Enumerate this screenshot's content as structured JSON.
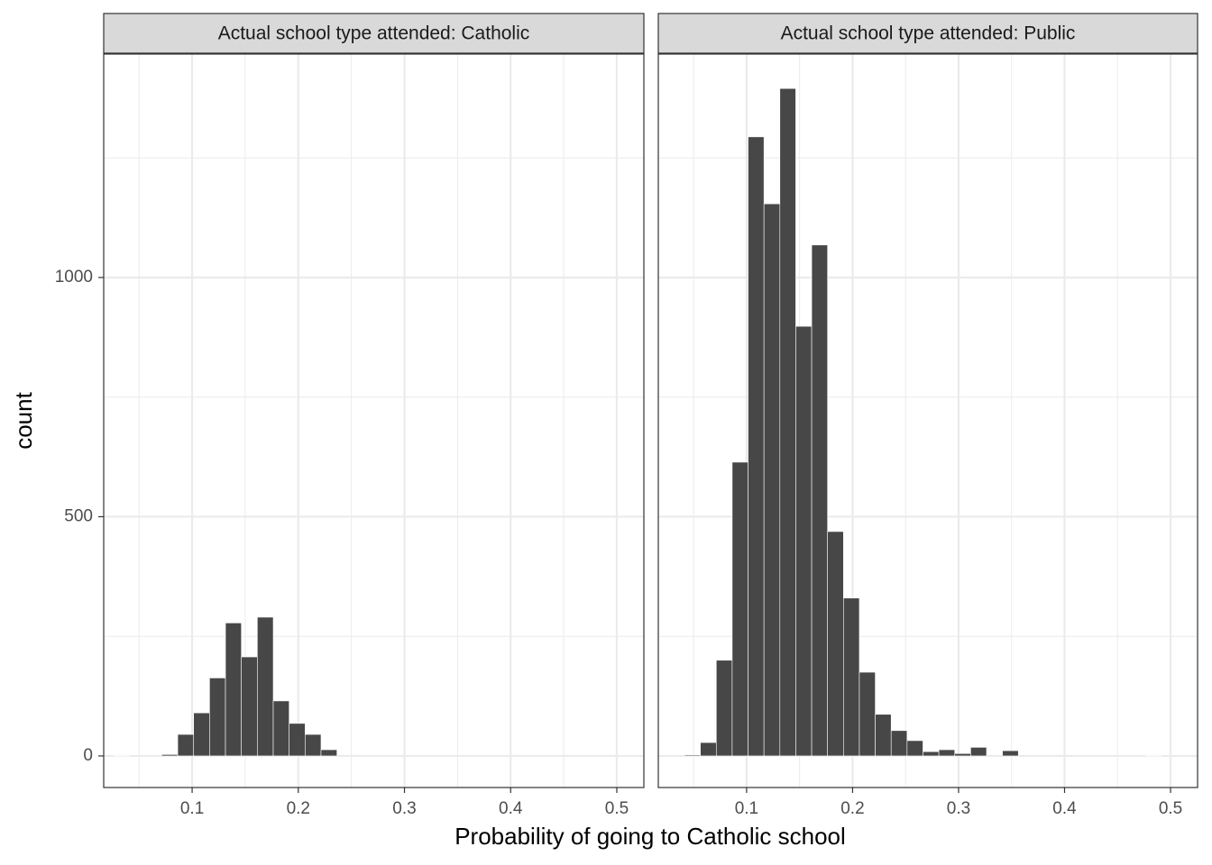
{
  "chart_data": [
    {
      "type": "histogram",
      "title": "Actual school type attended: Catholic",
      "x_label": "Probability of going to Catholic school",
      "y_label": "count",
      "bins": [
        0.0264,
        0.0414,
        0.0564,
        0.0714,
        0.0864,
        0.1014,
        0.1164,
        0.1314,
        0.1464,
        0.1614,
        0.1764,
        0.1914,
        0.2064,
        0.2214,
        0.2364,
        0.2514,
        0.2664,
        0.2814,
        0.2964,
        0.3114,
        0.3264,
        0.3414,
        0.3564,
        0.3714,
        0.3864,
        0.4014,
        0.4164,
        0.4314,
        0.4464,
        0.4614,
        0.4764,
        0.4914
      ],
      "values": [
        1,
        0,
        0,
        3,
        45,
        90,
        163,
        278,
        207,
        290,
        115,
        68,
        45,
        13,
        0,
        0,
        0,
        0,
        0,
        0,
        0,
        0,
        0,
        0,
        0,
        0,
        0,
        0,
        0,
        0,
        0
      ],
      "color": "#474747",
      "xlim": [
        0.0167,
        0.5255
      ],
      "ylim": [
        -66,
        1467
      ],
      "xticks": [
        0.1,
        0.2,
        0.3,
        0.4,
        0.5
      ],
      "yticks": [
        0,
        500,
        1000
      ],
      "xminor": [
        0.05,
        0.15,
        0.25,
        0.35,
        0.45
      ],
      "yminor": [
        250,
        750,
        1250
      ],
      "grid": true,
      "show_y_tick_labels": true
    },
    {
      "type": "histogram",
      "title": "Actual school type attended: Public",
      "bins": [
        0.0264,
        0.0414,
        0.0564,
        0.0714,
        0.0864,
        0.1014,
        0.1164,
        0.1314,
        0.1464,
        0.1614,
        0.1764,
        0.1914,
        0.2064,
        0.2214,
        0.2364,
        0.2514,
        0.2664,
        0.2814,
        0.2964,
        0.3114,
        0.3264,
        0.3414,
        0.3564,
        0.3714,
        0.3864,
        0.4014,
        0.4164,
        0.4314,
        0.4464,
        0.4614,
        0.4764,
        0.4914
      ],
      "values": [
        0,
        2,
        28,
        200,
        614,
        1294,
        1154,
        1395,
        898,
        1068,
        469,
        330,
        175,
        87,
        53,
        32,
        9,
        13,
        5,
        18,
        0,
        11,
        0,
        0,
        0,
        0,
        0,
        0,
        0,
        0,
        1
      ],
      "color": "#474747",
      "xlim": [
        0.0167,
        0.5255
      ],
      "ylim": [
        -66,
        1467
      ],
      "xticks": [
        0.1,
        0.2,
        0.3,
        0.4,
        0.5
      ],
      "yticks": [
        0,
        500,
        1000
      ],
      "xminor": [
        0.05,
        0.15,
        0.25,
        0.35,
        0.45
      ],
      "yminor": [
        250,
        750,
        1250
      ],
      "grid": true,
      "show_y_tick_labels": false
    }
  ]
}
